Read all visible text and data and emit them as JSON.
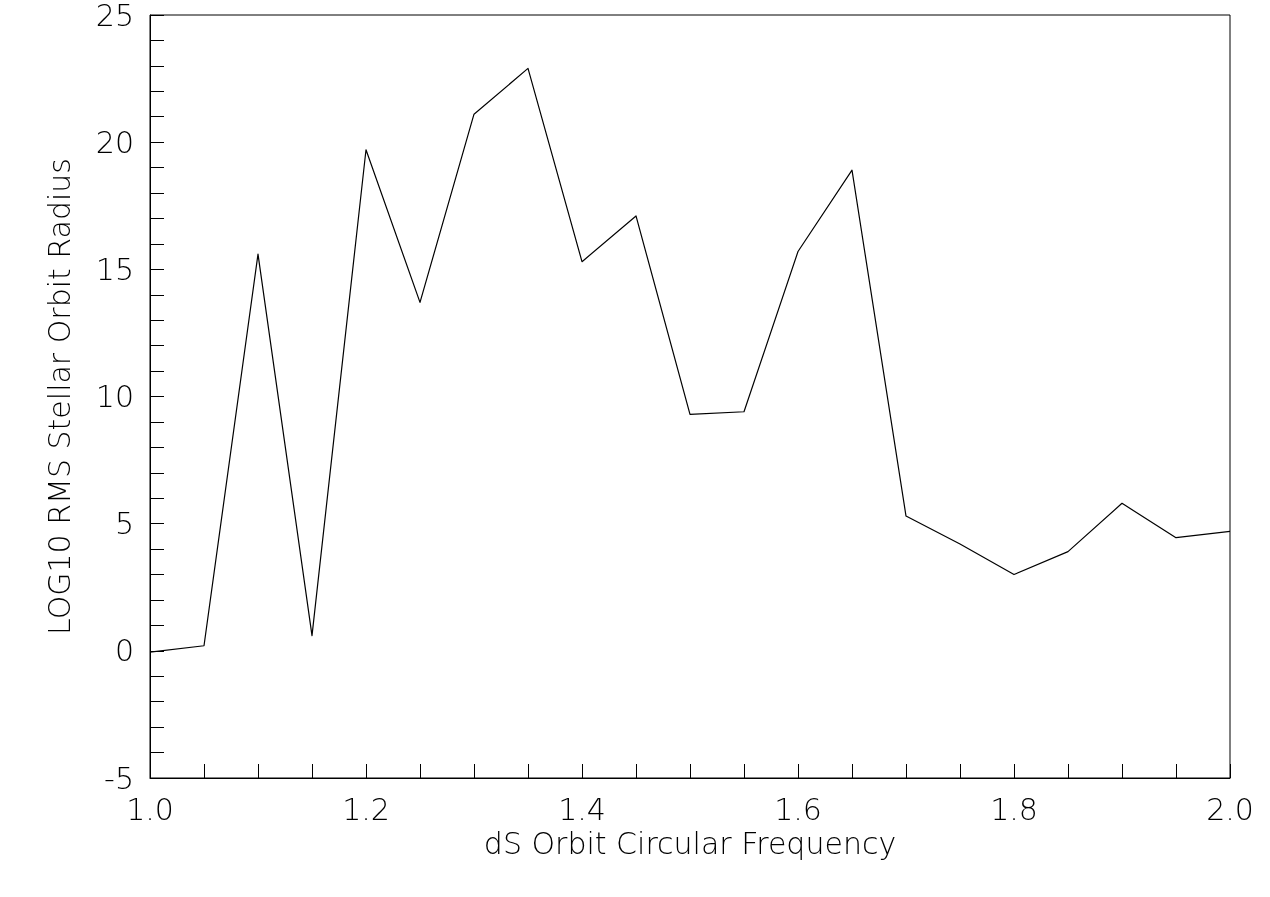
{
  "chart_data": {
    "type": "line",
    "xlabel": "dS Orbit Circular Frequency",
    "ylabel": "LOG10 RMS Stellar Orbit Radius",
    "x": [
      1.0,
      1.05,
      1.1,
      1.15,
      1.2,
      1.25,
      1.3,
      1.35,
      1.4,
      1.45,
      1.5,
      1.55,
      1.6,
      1.65,
      1.7,
      1.75,
      1.8,
      1.85,
      1.9,
      1.95,
      2.0
    ],
    "series": [
      {
        "color": "#000000",
        "values": [
          -0.05,
          0.2,
          15.6,
          0.6,
          19.7,
          13.7,
          21.1,
          22.9,
          15.3,
          17.1,
          9.3,
          9.4,
          15.7,
          18.9,
          5.3,
          4.2,
          3.0,
          3.9,
          5.8,
          4.45,
          4.7
        ]
      }
    ],
    "xlim": [
      1.0,
      2.0
    ],
    "ylim": [
      -5,
      25
    ],
    "xticks": [
      {
        "value": 1.0,
        "label": "1.0"
      },
      {
        "value": 1.05,
        "label": null
      },
      {
        "value": 1.1,
        "label": null
      },
      {
        "value": 1.15,
        "label": null
      },
      {
        "value": 1.2,
        "label": "1.2"
      },
      {
        "value": 1.25,
        "label": null
      },
      {
        "value": 1.3,
        "label": null
      },
      {
        "value": 1.35,
        "label": null
      },
      {
        "value": 1.4,
        "label": "1.4"
      },
      {
        "value": 1.45,
        "label": null
      },
      {
        "value": 1.5,
        "label": null
      },
      {
        "value": 1.55,
        "label": null
      },
      {
        "value": 1.6,
        "label": "1.6"
      },
      {
        "value": 1.65,
        "label": null
      },
      {
        "value": 1.7,
        "label": null
      },
      {
        "value": 1.75,
        "label": null
      },
      {
        "value": 1.8,
        "label": "1.8"
      },
      {
        "value": 1.85,
        "label": null
      },
      {
        "value": 1.9,
        "label": null
      },
      {
        "value": 1.95,
        "label": null
      },
      {
        "value": 2.0,
        "label": "2.0"
      }
    ],
    "yticks": [
      -5,
      {
        "value": -4,
        "label": null
      },
      {
        "value": -3,
        "label": null
      },
      {
        "value": -2,
        "label": null
      },
      {
        "value": -1,
        "label": null
      },
      0,
      {
        "value": 1,
        "label": null
      },
      {
        "value": 2,
        "label": null
      },
      {
        "value": 3,
        "label": null
      },
      {
        "value": 4,
        "label": null
      },
      5,
      {
        "value": 6,
        "label": null
      },
      {
        "value": 7,
        "label": null
      },
      {
        "value": 8,
        "label": null
      },
      {
        "value": 9,
        "label": null
      },
      10,
      {
        "value": 11,
        "label": null
      },
      {
        "value": 12,
        "label": null
      },
      {
        "value": 13,
        "label": null
      },
      {
        "value": 14,
        "label": null
      },
      15,
      {
        "value": 16,
        "label": null
      },
      {
        "value": 17,
        "label": null
      },
      {
        "value": 18,
        "label": null
      },
      {
        "value": 19,
        "label": null
      },
      20,
      {
        "value": 21,
        "label": null
      },
      {
        "value": 22,
        "label": null
      },
      {
        "value": 23,
        "label": null
      },
      {
        "value": 24,
        "label": null
      },
      25
    ],
    "grid": false,
    "marker": "none",
    "line_style": "solid"
  }
}
